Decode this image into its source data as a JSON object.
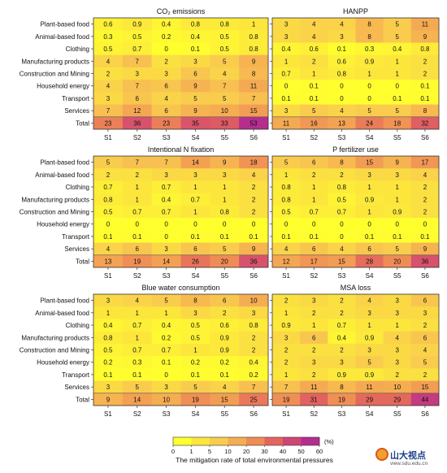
{
  "chart_data": [
    {
      "type": "heatmap",
      "title": "CO₂ emissions",
      "rows": [
        "Plant-based food",
        "Animal-based food",
        "Clothing",
        "Manufacturing products",
        "Construction and Mining",
        "Household energy",
        "Transport",
        "Services",
        "Total"
      ],
      "cols": [
        "S1",
        "S2",
        "S3",
        "S4",
        "S5",
        "S6"
      ],
      "values": [
        [
          "0.6",
          "0.9",
          "0.4",
          "0.8",
          "0.8",
          "1"
        ],
        [
          "0.3",
          "0.5",
          "0.2",
          "0.4",
          "0.5",
          "0.8"
        ],
        [
          "0.5",
          "0.7",
          "0",
          "0.1",
          "0.5",
          "0.8"
        ],
        [
          "4",
          "7",
          "2",
          "3",
          "5",
          "9"
        ],
        [
          "2",
          "3",
          "3",
          "6",
          "4",
          "8"
        ],
        [
          "4",
          "7",
          "6",
          "9",
          "7",
          "11"
        ],
        [
          "3",
          "6",
          "4",
          "5",
          "5",
          "7"
        ],
        [
          "7",
          "12",
          "6",
          "9",
          "10",
          "15"
        ],
        [
          "23",
          "36",
          "23",
          "35",
          "33",
          "53"
        ]
      ]
    },
    {
      "type": "heatmap",
      "title": "HANPP",
      "rows": [
        "Plant-based food",
        "Animal-based food",
        "Clothing",
        "Manufacturing products",
        "Construction and Mining",
        "Household energy",
        "Transport",
        "Services",
        "Total"
      ],
      "cols": [
        "S1",
        "S2",
        "S3",
        "S4",
        "S5",
        "S6"
      ],
      "values": [
        [
          "3",
          "4",
          "4",
          "8",
          "5",
          "11"
        ],
        [
          "3",
          "4",
          "3",
          "8",
          "5",
          "9"
        ],
        [
          "0.4",
          "0.6",
          "0.1",
          "0.3",
          "0.4",
          "0.8"
        ],
        [
          "1",
          "2",
          "0.6",
          "0.9",
          "1",
          "2"
        ],
        [
          "0.7",
          "1",
          "0.8",
          "1",
          "1",
          "2"
        ],
        [
          "0",
          "0.1",
          "0",
          "0",
          "0",
          "0.1"
        ],
        [
          "0.1",
          "0.1",
          "0",
          "0",
          "0.1",
          "0.1"
        ],
        [
          "3",
          "5",
          "4",
          "5",
          "5",
          "8"
        ],
        [
          "11",
          "16",
          "13",
          "24",
          "18",
          "32"
        ]
      ]
    },
    {
      "type": "heatmap",
      "title": "Intentional N fixation",
      "rows": [
        "Plant-based food",
        "Animal-based food",
        "Clothing",
        "Manufacturing products",
        "Construction and Mining",
        "Household energy",
        "Transport",
        "Services",
        "Total"
      ],
      "cols": [
        "S1",
        "S2",
        "S3",
        "S4",
        "S5",
        "S6"
      ],
      "values": [
        [
          "5",
          "7",
          "7",
          "14",
          "9",
          "18"
        ],
        [
          "2",
          "2",
          "3",
          "3",
          "3",
          "4"
        ],
        [
          "0.7",
          "1",
          "0.7",
          "1",
          "1",
          "2"
        ],
        [
          "0.8",
          "1",
          "0.4",
          "0.7",
          "1",
          "2"
        ],
        [
          "0.5",
          "0.7",
          "0.7",
          "1",
          "0.8",
          "2"
        ],
        [
          "0",
          "0",
          "0",
          "0",
          "0",
          "0"
        ],
        [
          "0.1",
          "0.1",
          "0",
          "0.1",
          "0.1",
          "0.1"
        ],
        [
          "4",
          "6",
          "3",
          "6",
          "5",
          "9"
        ],
        [
          "13",
          "19",
          "14",
          "26",
          "20",
          "36"
        ]
      ]
    },
    {
      "type": "heatmap",
      "title": "P fertilizer use",
      "rows": [
        "Plant-based food",
        "Animal-based food",
        "Clothing",
        "Manufacturing products",
        "Construction and Mining",
        "Household energy",
        "Transport",
        "Services",
        "Total"
      ],
      "cols": [
        "S1",
        "S2",
        "S3",
        "S4",
        "S5",
        "S6"
      ],
      "values": [
        [
          "5",
          "6",
          "8",
          "15",
          "9",
          "17"
        ],
        [
          "1",
          "2",
          "2",
          "3",
          "3",
          "4"
        ],
        [
          "0.8",
          "1",
          "0.8",
          "1",
          "1",
          "2"
        ],
        [
          "0.8",
          "1",
          "0.5",
          "0.9",
          "1",
          "2"
        ],
        [
          "0.5",
          "0.7",
          "0.7",
          "1",
          "0.9",
          "2"
        ],
        [
          "0",
          "0",
          "0",
          "0",
          "0",
          "0"
        ],
        [
          "0.1",
          "0.1",
          "0",
          "0.1",
          "0.1",
          "0.1"
        ],
        [
          "4",
          "6",
          "4",
          "6",
          "5",
          "9"
        ],
        [
          "12",
          "17",
          "15",
          "28",
          "20",
          "36"
        ]
      ]
    },
    {
      "type": "heatmap",
      "title": "Blue water consumption",
      "rows": [
        "Plant-based food",
        "Animal-based food",
        "Clothing",
        "Manufacturing products",
        "Construction and Mining",
        "Household energy",
        "Transport",
        "Services",
        "Total"
      ],
      "cols": [
        "S1",
        "S2",
        "S3",
        "S4",
        "S5",
        "S6"
      ],
      "values": [
        [
          "3",
          "4",
          "5",
          "8",
          "6",
          "10"
        ],
        [
          "1",
          "1",
          "1",
          "3",
          "2",
          "3"
        ],
        [
          "0.4",
          "0.7",
          "0.4",
          "0.5",
          "0.6",
          "0.8"
        ],
        [
          "0.8",
          "1",
          "0.2",
          "0.5",
          "0.9",
          "2"
        ],
        [
          "0.5",
          "0.7",
          "0.7",
          "1",
          "0.9",
          "2"
        ],
        [
          "0.2",
          "0.3",
          "0.1",
          "0.2",
          "0.2",
          "0.4"
        ],
        [
          "0.1",
          "0.1",
          "0",
          "0.1",
          "0.1",
          "0.2"
        ],
        [
          "3",
          "5",
          "3",
          "5",
          "4",
          "7"
        ],
        [
          "9",
          "14",
          "10",
          "19",
          "15",
          "25"
        ]
      ]
    },
    {
      "type": "heatmap",
      "title": "MSA loss",
      "rows": [
        "Plant-based food",
        "Animal-based food",
        "Clothing",
        "Manufacturing products",
        "Construction and Mining",
        "Household energy",
        "Transport",
        "Services",
        "Total"
      ],
      "cols": [
        "S1",
        "S2",
        "S3",
        "S4",
        "S5",
        "S6"
      ],
      "values": [
        [
          "2",
          "3",
          "2",
          "4",
          "3",
          "6"
        ],
        [
          "1",
          "2",
          "2",
          "3",
          "3",
          "3"
        ],
        [
          "0.9",
          "1",
          "0.7",
          "1",
          "1",
          "2"
        ],
        [
          "3",
          "6",
          "0.4",
          "0.9",
          "4",
          "6"
        ],
        [
          "2",
          "2",
          "2",
          "3",
          "3",
          "4"
        ],
        [
          "2",
          "3",
          "3",
          "5",
          "3",
          "5"
        ],
        [
          "1",
          "2",
          "0.9",
          "0.9",
          "2",
          "2"
        ],
        [
          "7",
          "11",
          "8",
          "11",
          "10",
          "15"
        ],
        [
          "19",
          "31",
          "19",
          "29",
          "29",
          "44"
        ]
      ]
    }
  ],
  "legend": {
    "ticks": [
      "0",
      "1",
      "5",
      "10",
      "20",
      "30",
      "40",
      "50",
      "60"
    ],
    "unit": "(%)",
    "caption": "The mitigation rate of total environmental pressures",
    "colors": [
      "#ffff2e",
      "#fce63c",
      "#f9cc4e",
      "#f5ad52",
      "#ef8c55",
      "#e3655e",
      "#cf4576",
      "#b52d8e"
    ]
  },
  "watermark": {
    "text": "山大视点",
    "sub": "view.sdu.edu.cn"
  }
}
